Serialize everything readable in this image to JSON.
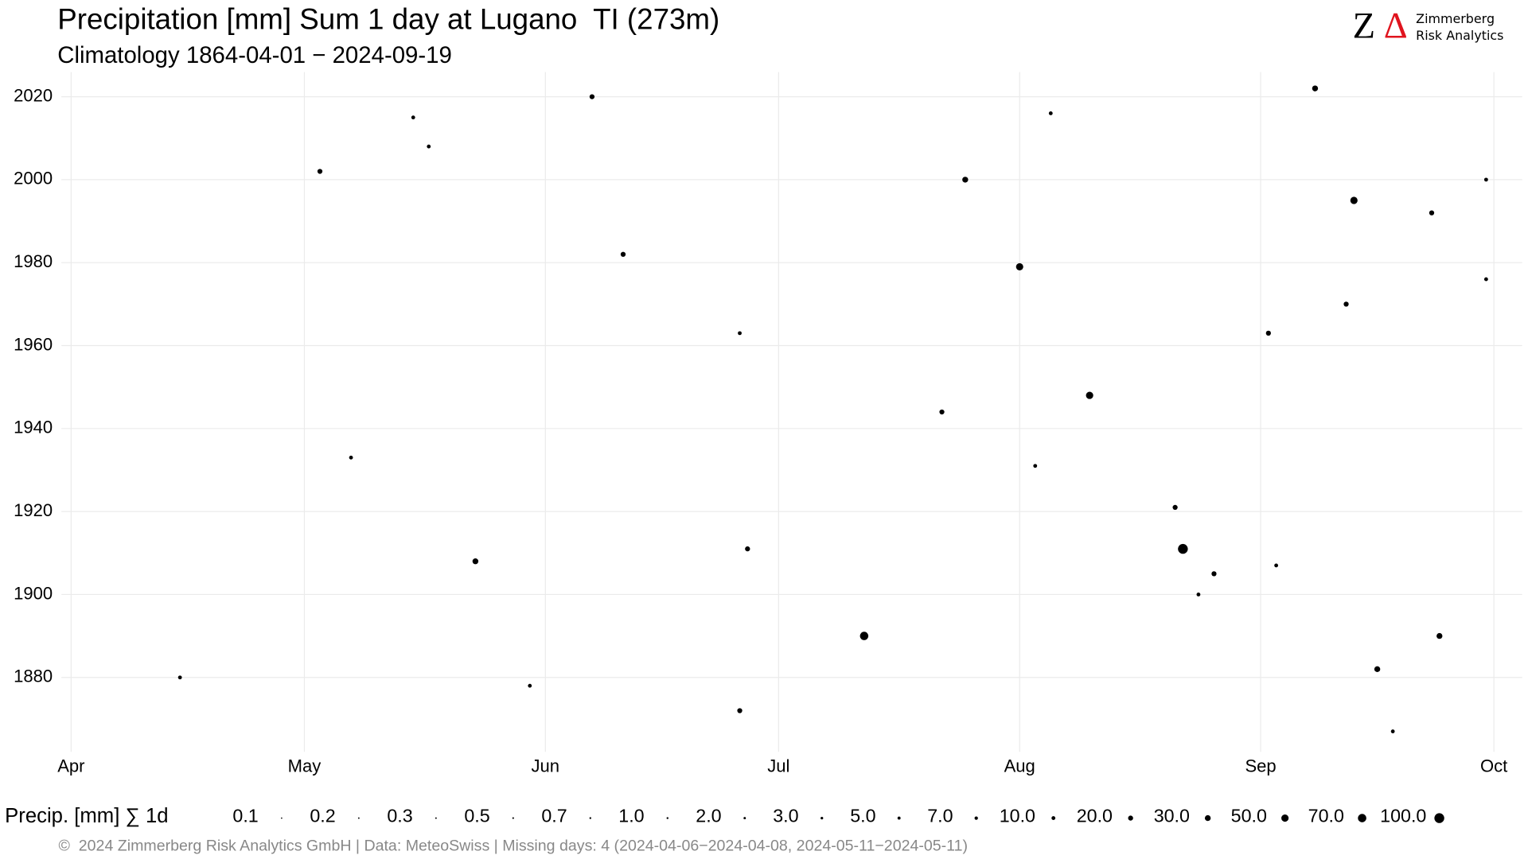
{
  "chart_data": {
    "type": "scatter",
    "title": "Precipitation [mm] Sum 1 day at Lugano  TI (273m)",
    "subtitle": "Climatology 1864-04-01 − 2024-09-19",
    "xlim": [
      0,
      183
    ],
    "xticks": [
      {
        "value": 0,
        "label": "Apr"
      },
      {
        "value": 30,
        "label": "May"
      },
      {
        "value": 61,
        "label": "Jun"
      },
      {
        "value": 91,
        "label": "Jul"
      },
      {
        "value": 122,
        "label": "Aug"
      },
      {
        "value": 153,
        "label": "Sep"
      },
      {
        "value": 183,
        "label": "Oct"
      }
    ],
    "ylim": [
      1863,
      2025
    ],
    "yticks": [
      1880,
      1900,
      1920,
      1940,
      1960,
      1980,
      2000,
      2020
    ],
    "grid": true,
    "series": [
      {
        "color": "#000000",
        "x": [
          143,
          102,
          131,
          122,
          165,
          160,
          176,
          168,
          115,
          52,
          87,
          86,
          67,
          32,
          147,
          142,
          154,
          164,
          175,
          112,
          71,
          182,
          44,
          46,
          36,
          14,
          126,
          155,
          145,
          170,
          182,
          86,
          59,
          124
        ],
        "values": [
          1911,
          1890,
          1948,
          1979,
          1995,
          2022,
          1890,
          1882,
          2000,
          1908,
          1911,
          1872,
          2020,
          2002,
          1905,
          1921,
          1963,
          1970,
          1992,
          1944,
          1982,
          2000,
          2015,
          2008,
          1933,
          1880,
          2016,
          1907,
          1900,
          1867,
          1976,
          1963,
          1878,
          1931
        ],
        "sizes": [
          100,
          70,
          50,
          50,
          50,
          30,
          30,
          30,
          30,
          30,
          20,
          20,
          20,
          20,
          20,
          20,
          20,
          20,
          20,
          20,
          20,
          10,
          10,
          10,
          10,
          10,
          10,
          10,
          10,
          10,
          10,
          10,
          10,
          10
        ]
      }
    ],
    "size_legend_title": "Precip. [mm] ∑ 1d",
    "size_legend": [
      0.1,
      0.2,
      0.3,
      0.5,
      0.7,
      {
        "value": 1,
        "label": "1.0"
      },
      {
        "value": 2,
        "label": "2.0"
      },
      {
        "value": 3,
        "label": "3.0"
      },
      {
        "value": 5,
        "label": "5.0"
      },
      {
        "value": 7,
        "label": "7.0"
      },
      {
        "value": 10,
        "label": "10.0"
      },
      {
        "value": 20,
        "label": "20.0"
      },
      {
        "value": 30,
        "label": "30.0"
      },
      {
        "value": 50,
        "label": "50.0"
      },
      {
        "value": 70,
        "label": "70.0"
      },
      {
        "value": 100,
        "label": "100.0"
      }
    ]
  },
  "logo": {
    "mark_z": "Z",
    "mark_delta": "Δ",
    "line1": "Zimmerberg",
    "line2": "Risk Analytics"
  },
  "footer": "©  2024 Zimmerberg Risk Analytics GmbH | Data: MeteoSwiss | Missing days: 4 (2024-04-06−2024-04-08, 2024-05-11−2024-05-11)"
}
